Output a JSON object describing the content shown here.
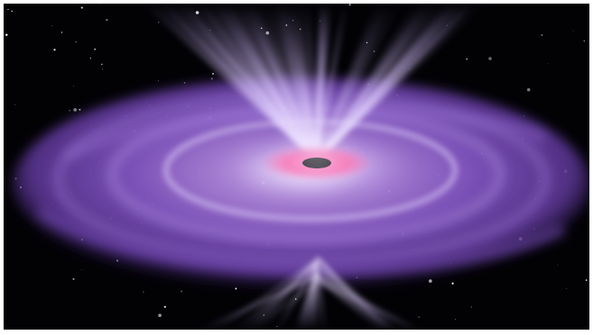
{
  "image": {
    "subject": "black-hole-accretion-disk-with-jets",
    "colors": {
      "space": "#020205",
      "disk_outer": "#5a3592",
      "disk_mid": "#8a63c8",
      "disk_glow": "#d8c6f5",
      "inner_ring": "#ff7fb8",
      "core": "#2b2b2b",
      "jet": "#e9dcff",
      "star": "#ffffff"
    }
  }
}
